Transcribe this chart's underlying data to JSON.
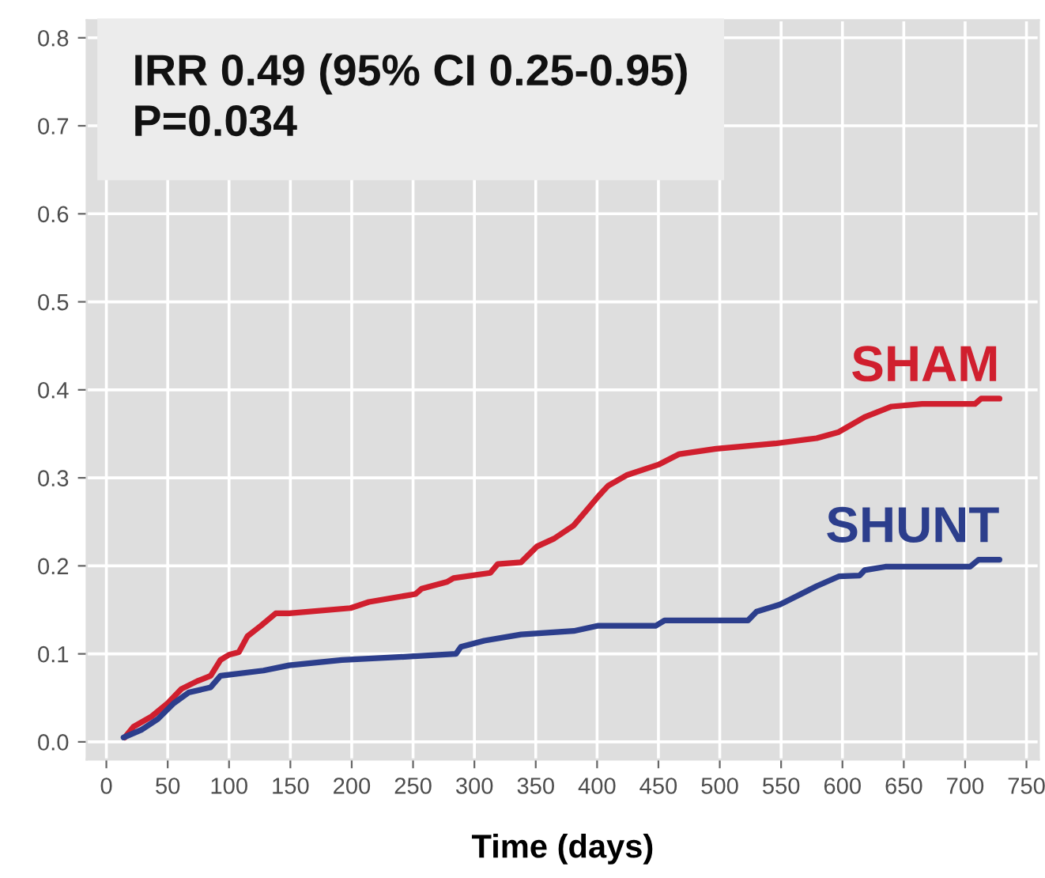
{
  "chart_data": {
    "type": "line",
    "xlabel": "Time (days)",
    "annotations": [
      "IRR 0.49 (95% CI 0.25-0.95)",
      "P=0.034"
    ],
    "series": [
      {
        "name": "SHAM",
        "color": "#d01f2e",
        "x": [
          15,
          22,
          37,
          50,
          61,
          74,
          85,
          93,
          100,
          108,
          115,
          126,
          138,
          149,
          199,
          214,
          252,
          257,
          278,
          283,
          313,
          319,
          338,
          351,
          365,
          381,
          392,
          401,
          409,
          424,
          450,
          467,
          497,
          545,
          579,
          597,
          618,
          640,
          665,
          708,
          713,
          728
        ],
        "values": [
          0.005,
          0.017,
          0.029,
          0.044,
          0.06,
          0.069,
          0.075,
          0.093,
          0.099,
          0.102,
          0.12,
          0.132,
          0.146,
          0.146,
          0.152,
          0.159,
          0.168,
          0.174,
          0.182,
          0.186,
          0.192,
          0.202,
          0.204,
          0.222,
          0.231,
          0.246,
          0.264,
          0.279,
          0.291,
          0.303,
          0.315,
          0.327,
          0.333,
          0.339,
          0.345,
          0.352,
          0.369,
          0.381,
          0.384,
          0.384,
          0.39,
          0.39
        ]
      },
      {
        "name": "SHUNT",
        "color": "#2c3e8c",
        "x": [
          14,
          29,
          42,
          55,
          67,
          85,
          93,
          128,
          149,
          192,
          248,
          285,
          289,
          308,
          338,
          381,
          401,
          448,
          455,
          523,
          530,
          549,
          562,
          579,
          597,
          614,
          618,
          635,
          704,
          711,
          728
        ],
        "values": [
          0.005,
          0.014,
          0.026,
          0.044,
          0.056,
          0.062,
          0.075,
          0.081,
          0.087,
          0.093,
          0.097,
          0.1,
          0.108,
          0.115,
          0.122,
          0.126,
          0.132,
          0.132,
          0.138,
          0.138,
          0.148,
          0.156,
          0.165,
          0.177,
          0.188,
          0.189,
          0.195,
          0.199,
          0.199,
          0.207,
          0.207
        ]
      }
    ],
    "xlim": [
      -16,
      760
    ],
    "ylim": [
      -0.02,
      0.82
    ],
    "xticks": [
      0,
      50,
      100,
      150,
      200,
      250,
      300,
      350,
      400,
      450,
      500,
      550,
      600,
      650,
      700,
      750
    ],
    "yticks": [
      {
        "value": 0,
        "label": "0.0"
      },
      0.1,
      0.2,
      0.3,
      0.4,
      0.5,
      0.6,
      0.7,
      0.8
    ],
    "grid": true
  }
}
